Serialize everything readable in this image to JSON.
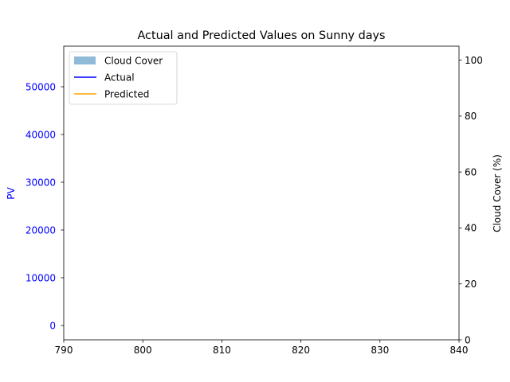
{
  "chart_data": {
    "type": "line",
    "title": "Actual and Predicted Values on Sunny days",
    "xlabel": "",
    "x_ticks": [
      "790",
      "800",
      "810",
      "820",
      "830",
      "840"
    ],
    "xlim": [
      790,
      840
    ],
    "ylabel_left": "PV",
    "y_left_ticks": [
      "0",
      "10000",
      "20000",
      "30000",
      "40000",
      "50000"
    ],
    "ylim_left": [
      -3000,
      58500
    ],
    "ylabel_right": "Cloud Cover (%)",
    "y_right_ticks": [
      "0",
      "20",
      "40",
      "60",
      "80",
      "100"
    ],
    "ylim_right": [
      0,
      105
    ],
    "legend_position": "upper-left",
    "grid": false,
    "series": [
      {
        "name": "Cloud Cover",
        "kind": "bar",
        "axis": "right",
        "color": "#1f77b4",
        "alpha": 0.5,
        "x": [],
        "values": []
      },
      {
        "name": "Actual",
        "kind": "line",
        "axis": "left",
        "color": "#0000ff",
        "x": [],
        "values": []
      },
      {
        "name": "Predicted",
        "kind": "line",
        "axis": "left",
        "color": "#ffa500",
        "x": [],
        "values": []
      }
    ],
    "left_axis_color": "#0000ff"
  }
}
